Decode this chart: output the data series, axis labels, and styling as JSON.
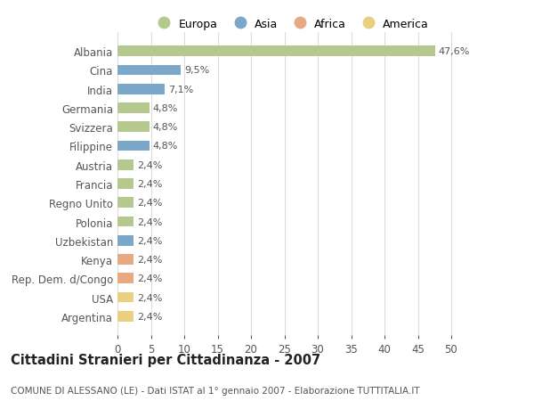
{
  "categories": [
    "Albania",
    "Cina",
    "India",
    "Germania",
    "Svizzera",
    "Filippine",
    "Austria",
    "Francia",
    "Regno Unito",
    "Polonia",
    "Uzbekistan",
    "Kenya",
    "Rep. Dem. d/Congo",
    "USA",
    "Argentina"
  ],
  "values": [
    47.6,
    9.5,
    7.1,
    4.8,
    4.8,
    4.8,
    2.4,
    2.4,
    2.4,
    2.4,
    2.4,
    2.4,
    2.4,
    2.4,
    2.4
  ],
  "labels": [
    "47,6%",
    "9,5%",
    "7,1%",
    "4,8%",
    "4,8%",
    "4,8%",
    "2,4%",
    "2,4%",
    "2,4%",
    "2,4%",
    "2,4%",
    "2,4%",
    "2,4%",
    "2,4%",
    "2,4%"
  ],
  "continents": [
    "Europa",
    "Asia",
    "Asia",
    "Europa",
    "Europa",
    "Asia",
    "Europa",
    "Europa",
    "Europa",
    "Europa",
    "Asia",
    "Africa",
    "Africa",
    "America",
    "America"
  ],
  "continent_colors": {
    "Europa": "#b5c98e",
    "Asia": "#7ba7c9",
    "Africa": "#e8a882",
    "America": "#e8d080"
  },
  "legend_items": [
    "Europa",
    "Asia",
    "Africa",
    "America"
  ],
  "title": "Cittadini Stranieri per Cittadinanza - 2007",
  "subtitle": "COMUNE DI ALESSANO (LE) - Dati ISTAT al 1° gennaio 2007 - Elaborazione TUTTITALIA.IT",
  "xlim": [
    0,
    52
  ],
  "xticks": [
    0,
    5,
    10,
    15,
    20,
    25,
    30,
    35,
    40,
    45,
    50
  ],
  "background_color": "#ffffff",
  "grid_color": "#dddddd",
  "bar_height": 0.55,
  "label_fontsize": 8,
  "tick_fontsize": 8.5,
  "title_fontsize": 10.5,
  "subtitle_fontsize": 7.5
}
